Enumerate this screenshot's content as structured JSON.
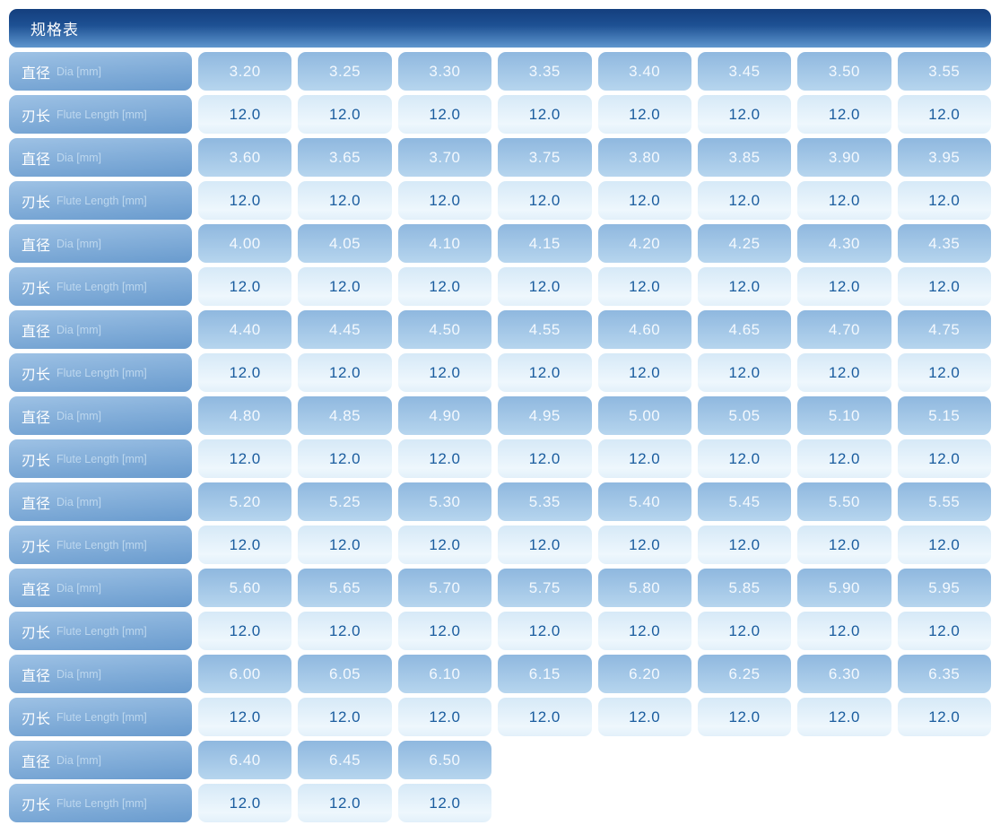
{
  "header": {
    "title": "规格表"
  },
  "row_labels": {
    "dia_zh": "直径",
    "dia_en": "Dia [mm]",
    "flute_zh": "刃长",
    "flute_en": "Flute Length [mm]"
  },
  "colors": {
    "header_gradient_top": "#143f7e",
    "header_gradient_bottom": "#5f96ce",
    "label_cell_top": "#9ec2e5",
    "label_cell_bottom": "#699bce",
    "dia_cell_top": "#8fb8df",
    "dia_cell_bottom": "#b6d5ee",
    "flute_cell_top": "#d6e9f7",
    "flute_cell_bottom": "#eef7fd",
    "flute_text": "#1a5c9e",
    "label_en_text": "#bdd7ee"
  },
  "chart_data": {
    "type": "table",
    "title": "规格表",
    "columns_per_row": 8,
    "row_pairs": [
      {
        "dia": [
          "3.20",
          "3.25",
          "3.30",
          "3.35",
          "3.40",
          "3.45",
          "3.50",
          "3.55"
        ],
        "flute": [
          "12.0",
          "12.0",
          "12.0",
          "12.0",
          "12.0",
          "12.0",
          "12.0",
          "12.0"
        ]
      },
      {
        "dia": [
          "3.60",
          "3.65",
          "3.70",
          "3.75",
          "3.80",
          "3.85",
          "3.90",
          "3.95"
        ],
        "flute": [
          "12.0",
          "12.0",
          "12.0",
          "12.0",
          "12.0",
          "12.0",
          "12.0",
          "12.0"
        ]
      },
      {
        "dia": [
          "4.00",
          "4.05",
          "4.10",
          "4.15",
          "4.20",
          "4.25",
          "4.30",
          "4.35"
        ],
        "flute": [
          "12.0",
          "12.0",
          "12.0",
          "12.0",
          "12.0",
          "12.0",
          "12.0",
          "12.0"
        ]
      },
      {
        "dia": [
          "4.40",
          "4.45",
          "4.50",
          "4.55",
          "4.60",
          "4.65",
          "4.70",
          "4.75"
        ],
        "flute": [
          "12.0",
          "12.0",
          "12.0",
          "12.0",
          "12.0",
          "12.0",
          "12.0",
          "12.0"
        ]
      },
      {
        "dia": [
          "4.80",
          "4.85",
          "4.90",
          "4.95",
          "5.00",
          "5.05",
          "5.10",
          "5.15"
        ],
        "flute": [
          "12.0",
          "12.0",
          "12.0",
          "12.0",
          "12.0",
          "12.0",
          "12.0",
          "12.0"
        ]
      },
      {
        "dia": [
          "5.20",
          "5.25",
          "5.30",
          "5.35",
          "5.40",
          "5.45",
          "5.50",
          "5.55"
        ],
        "flute": [
          "12.0",
          "12.0",
          "12.0",
          "12.0",
          "12.0",
          "12.0",
          "12.0",
          "12.0"
        ]
      },
      {
        "dia": [
          "5.60",
          "5.65",
          "5.70",
          "5.75",
          "5.80",
          "5.85",
          "5.90",
          "5.95"
        ],
        "flute": [
          "12.0",
          "12.0",
          "12.0",
          "12.0",
          "12.0",
          "12.0",
          "12.0",
          "12.0"
        ]
      },
      {
        "dia": [
          "6.00",
          "6.05",
          "6.10",
          "6.15",
          "6.20",
          "6.25",
          "6.30",
          "6.35"
        ],
        "flute": [
          "12.0",
          "12.0",
          "12.0",
          "12.0",
          "12.0",
          "12.0",
          "12.0",
          "12.0"
        ]
      },
      {
        "dia": [
          "6.40",
          "6.45",
          "6.50"
        ],
        "flute": [
          "12.0",
          "12.0",
          "12.0"
        ]
      }
    ]
  }
}
